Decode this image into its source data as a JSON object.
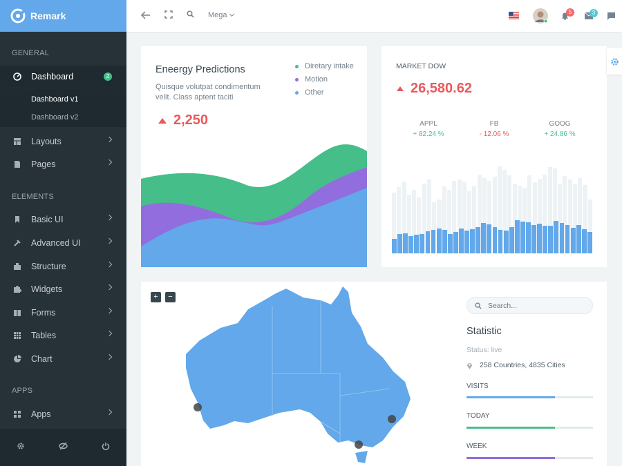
{
  "brand": {
    "name": "Remark"
  },
  "sidebar": {
    "sections": [
      "GENERAL",
      "ELEMENTS",
      "APPS"
    ],
    "items": [
      {
        "label": "Dashboard",
        "icon": "dashboard-icon",
        "badge": "2"
      },
      {
        "label": "Layouts",
        "icon": "layouts-icon"
      },
      {
        "label": "Pages",
        "icon": "pages-icon"
      },
      {
        "label": "Basic UI",
        "icon": "bookmark-icon"
      },
      {
        "label": "Advanced UI",
        "icon": "hammer-icon"
      },
      {
        "label": "Structure",
        "icon": "plugin-icon"
      },
      {
        "label": "Widgets",
        "icon": "puzzle-icon"
      },
      {
        "label": "Forms",
        "icon": "book-icon"
      },
      {
        "label": "Tables",
        "icon": "table-icon"
      },
      {
        "label": "Chart",
        "icon": "pie-chart-icon"
      },
      {
        "label": "Apps",
        "icon": "apps-grid-icon"
      }
    ],
    "sub": [
      "Dashboard v1",
      "Dashboard v2"
    ],
    "footer": [
      "gear-icon",
      "eye-off-icon",
      "power-icon"
    ]
  },
  "topbar": {
    "mega": "Mega",
    "notifications": "5",
    "messages": "3"
  },
  "energy": {
    "title": "Eneergy Predictions",
    "desc1": "Quisque volutpat condimentum",
    "desc2": "velit. Class aptent taciti",
    "value": "2,250",
    "legend": [
      "Diretary intake",
      "Motion",
      "Other"
    ],
    "colors": {
      "green": "#46be8a",
      "purple": "#926dde",
      "blue": "#62a8ea"
    }
  },
  "market": {
    "title": "MARKET DOW",
    "value": "26,580.62",
    "stocks": [
      {
        "name": "APPL",
        "change": "+ 82.24 %",
        "up": true
      },
      {
        "name": "FB",
        "change": "- 12.06 %",
        "up": false
      },
      {
        "name": "GOOG",
        "change": "+ 24.86 %",
        "up": true
      }
    ]
  },
  "chart_data": {
    "type": "bar",
    "series": [
      {
        "values": [
          85,
          92,
          100,
          82,
          88,
          78,
          97,
          103,
          71,
          75,
          93,
          88,
          101,
          103,
          100,
          87,
          93,
          110,
          105,
          101,
          107,
          121,
          116,
          109,
          97,
          94,
          91,
          109,
          99,
          104,
          110,
          120,
          118,
          97,
          108,
          103,
          96,
          105,
          95,
          75
        ]
      },
      {
        "values": [
          20,
          27,
          28,
          24,
          26,
          27,
          31,
          33,
          35,
          33,
          27,
          30,
          35,
          32,
          34,
          37,
          42,
          40,
          37,
          33,
          32,
          37,
          46,
          44,
          43,
          39,
          41,
          38,
          38,
          45,
          42,
          39,
          36,
          39,
          34,
          30
        ]
      }
    ]
  },
  "map": {
    "zoom_in": "+",
    "zoom_out": "−"
  },
  "stat": {
    "search_placeholder": "Search...",
    "title": "Statistic",
    "status": "Status: live",
    "location": "258 Countries, 4835 Cities",
    "bars": [
      {
        "label": "VISITS",
        "percent": 70,
        "color": "#62a8ea"
      },
      {
        "label": "TODAY",
        "percent": 70,
        "color": "#46be8a"
      },
      {
        "label": "WEEK",
        "percent": 70,
        "color": "#926dde"
      }
    ]
  }
}
